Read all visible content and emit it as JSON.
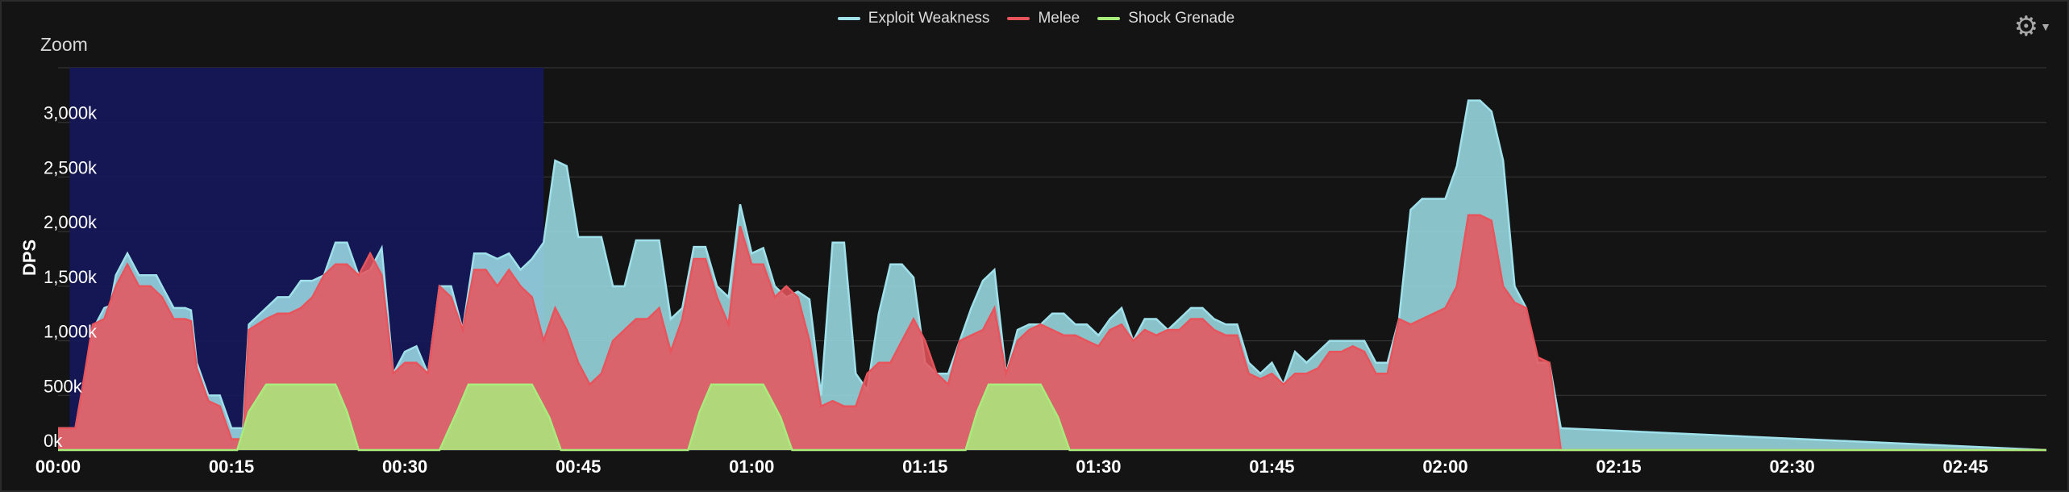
{
  "legend": [
    {
      "name": "Exploit Weakness",
      "color": "#9fe0ea"
    },
    {
      "name": "Melee",
      "color": "#e8545c"
    },
    {
      "name": "Shock Grenade",
      "color": "#a8ec7c"
    }
  ],
  "zoom_label": "Zoom",
  "ylabel": "DPS",
  "settings_icon": "gear-icon",
  "chart_data": {
    "type": "area",
    "ylabel": "DPS",
    "xlabel": "",
    "xlim": [
      0,
      172
    ],
    "ylim": [
      0,
      3500
    ],
    "grid": true,
    "legend_position": "top-center",
    "zoom_selection": [
      1,
      42
    ],
    "y_ticks": [
      0,
      500,
      1000,
      1500,
      2000,
      2500,
      3000
    ],
    "y_tick_labels": [
      "0k",
      "500k",
      "1,000k",
      "1,500k",
      "2,000k",
      "2,500k",
      "3,000k"
    ],
    "x_ticks": [
      0,
      15,
      30,
      45,
      60,
      75,
      90,
      105,
      120,
      135,
      150,
      165
    ],
    "x_tick_labels": [
      "00:00",
      "00:15",
      "00:30",
      "00:45",
      "01:00",
      "01:15",
      "01:30",
      "01:45",
      "02:00",
      "02:15",
      "02:30",
      "02:45"
    ],
    "series": [
      {
        "name": "Exploit Weakness",
        "color": "#9fe0ea",
        "points": [
          [
            0,
            200
          ],
          [
            1.5,
            200
          ],
          [
            2,
            500
          ],
          [
            3,
            1100
          ],
          [
            4,
            1300
          ],
          [
            4.5,
            1320
          ],
          [
            5,
            1600
          ],
          [
            6,
            1800
          ],
          [
            7,
            1600
          ],
          [
            8,
            1600
          ],
          [
            8.5,
            1600
          ],
          [
            9,
            1500
          ],
          [
            10,
            1300
          ],
          [
            11,
            1300
          ],
          [
            11.5,
            1280
          ],
          [
            12,
            800
          ],
          [
            13,
            500
          ],
          [
            14,
            500
          ],
          [
            15,
            200
          ],
          [
            16,
            200
          ],
          [
            16.5,
            1150
          ],
          [
            18,
            1300
          ],
          [
            19,
            1400
          ],
          [
            20,
            1400
          ],
          [
            21,
            1550
          ],
          [
            22,
            1550
          ],
          [
            23,
            1600
          ],
          [
            24,
            1900
          ],
          [
            25,
            1900
          ],
          [
            26,
            1600
          ],
          [
            27,
            1650
          ],
          [
            28,
            1850
          ],
          [
            29,
            700
          ],
          [
            30,
            900
          ],
          [
            31,
            950
          ],
          [
            32,
            700
          ],
          [
            33,
            1500
          ],
          [
            34,
            1500
          ],
          [
            35,
            1100
          ],
          [
            36,
            1800
          ],
          [
            37,
            1800
          ],
          [
            38,
            1750
          ],
          [
            39,
            1800
          ],
          [
            40,
            1650
          ],
          [
            41,
            1750
          ],
          [
            42,
            1900
          ],
          [
            43,
            2650
          ],
          [
            44,
            2600
          ],
          [
            45,
            1950
          ],
          [
            46,
            1950
          ],
          [
            47,
            1950
          ],
          [
            48,
            1500
          ],
          [
            49,
            1500
          ],
          [
            50,
            1920
          ],
          [
            51,
            1920
          ],
          [
            52,
            1920
          ],
          [
            53,
            1200
          ],
          [
            54,
            1300
          ],
          [
            55,
            1860
          ],
          [
            56,
            1860
          ],
          [
            57,
            1500
          ],
          [
            58,
            1400
          ],
          [
            59,
            2250
          ],
          [
            60,
            1800
          ],
          [
            61,
            1850
          ],
          [
            62,
            1500
          ],
          [
            63,
            1400
          ],
          [
            64,
            1450
          ],
          [
            65,
            1380
          ],
          [
            66,
            500
          ],
          [
            67,
            1900
          ],
          [
            68,
            1900
          ],
          [
            69,
            700
          ],
          [
            70,
            550
          ],
          [
            71,
            1250
          ],
          [
            72,
            1700
          ],
          [
            73,
            1700
          ],
          [
            74,
            1580
          ],
          [
            75,
            800
          ],
          [
            76,
            700
          ],
          [
            77,
            700
          ],
          [
            78,
            1000
          ],
          [
            79,
            1300
          ],
          [
            80,
            1550
          ],
          [
            81,
            1650
          ],
          [
            82,
            700
          ],
          [
            83,
            1100
          ],
          [
            84,
            1150
          ],
          [
            85,
            1150
          ],
          [
            86,
            1250
          ],
          [
            87,
            1250
          ],
          [
            88,
            1150
          ],
          [
            89,
            1150
          ],
          [
            90,
            1050
          ],
          [
            91,
            1200
          ],
          [
            92,
            1300
          ],
          [
            93,
            1000
          ],
          [
            94,
            1200
          ],
          [
            95,
            1200
          ],
          [
            96,
            1100
          ],
          [
            97,
            1200
          ],
          [
            98,
            1300
          ],
          [
            99,
            1300
          ],
          [
            100,
            1200
          ],
          [
            101,
            1150
          ],
          [
            102,
            1150
          ],
          [
            103,
            800
          ],
          [
            104,
            700
          ],
          [
            105,
            800
          ],
          [
            106,
            600
          ],
          [
            107,
            900
          ],
          [
            108,
            800
          ],
          [
            109,
            900
          ],
          [
            110,
            1000
          ],
          [
            111,
            1000
          ],
          [
            112,
            1000
          ],
          [
            113,
            1000
          ],
          [
            114,
            800
          ],
          [
            115,
            800
          ],
          [
            116,
            1200
          ],
          [
            117,
            2200
          ],
          [
            118,
            2300
          ],
          [
            119,
            2300
          ],
          [
            120,
            2300
          ],
          [
            121,
            2600
          ],
          [
            122,
            3200
          ],
          [
            123,
            3200
          ],
          [
            124,
            3100
          ],
          [
            125,
            2650
          ],
          [
            126,
            1500
          ],
          [
            127,
            1300
          ],
          [
            128,
            800
          ],
          [
            129,
            800
          ],
          [
            130,
            200
          ],
          [
            172,
            0
          ]
        ]
      },
      {
        "name": "Melee",
        "color": "#e8545c",
        "points": [
          [
            0,
            200
          ],
          [
            1.5,
            200
          ],
          [
            2,
            500
          ],
          [
            3,
            1150
          ],
          [
            4,
            1200
          ],
          [
            5,
            1500
          ],
          [
            6,
            1700
          ],
          [
            7,
            1500
          ],
          [
            8,
            1500
          ],
          [
            9,
            1400
          ],
          [
            10,
            1200
          ],
          [
            11,
            1200
          ],
          [
            11.5,
            1180
          ],
          [
            12,
            750
          ],
          [
            13,
            450
          ],
          [
            14,
            400
          ],
          [
            15,
            100
          ],
          [
            16,
            100
          ],
          [
            16.5,
            1100
          ],
          [
            18,
            1200
          ],
          [
            19,
            1250
          ],
          [
            20,
            1250
          ],
          [
            21,
            1300
          ],
          [
            22,
            1400
          ],
          [
            23,
            1600
          ],
          [
            24,
            1700
          ],
          [
            25,
            1700
          ],
          [
            26,
            1600
          ],
          [
            27,
            1800
          ],
          [
            28,
            1600
          ],
          [
            29,
            700
          ],
          [
            30,
            800
          ],
          [
            31,
            800
          ],
          [
            32,
            700
          ],
          [
            33,
            1500
          ],
          [
            34,
            1400
          ],
          [
            35,
            1100
          ],
          [
            36,
            1650
          ],
          [
            37,
            1650
          ],
          [
            38,
            1500
          ],
          [
            39,
            1650
          ],
          [
            40,
            1500
          ],
          [
            41,
            1400
          ],
          [
            42,
            1000
          ],
          [
            43,
            1300
          ],
          [
            44,
            1100
          ],
          [
            45,
            800
          ],
          [
            46,
            600
          ],
          [
            47,
            700
          ],
          [
            48,
            1000
          ],
          [
            49,
            1100
          ],
          [
            50,
            1200
          ],
          [
            51,
            1200
          ],
          [
            52,
            1300
          ],
          [
            53,
            900
          ],
          [
            54,
            1200
          ],
          [
            55,
            1750
          ],
          [
            56,
            1750
          ],
          [
            57,
            1400
          ],
          [
            58,
            1150
          ],
          [
            59,
            2050
          ],
          [
            60,
            1700
          ],
          [
            61,
            1700
          ],
          [
            62,
            1400
          ],
          [
            63,
            1500
          ],
          [
            64,
            1400
          ],
          [
            65,
            1000
          ],
          [
            66,
            400
          ],
          [
            67,
            450
          ],
          [
            68,
            400
          ],
          [
            69,
            400
          ],
          [
            70,
            700
          ],
          [
            71,
            800
          ],
          [
            72,
            800
          ],
          [
            73,
            1000
          ],
          [
            74,
            1200
          ],
          [
            75,
            1000
          ],
          [
            76,
            700
          ],
          [
            77,
            600
          ],
          [
            78,
            1000
          ],
          [
            79,
            1050
          ],
          [
            80,
            1100
          ],
          [
            81,
            1300
          ],
          [
            82,
            700
          ],
          [
            83,
            1000
          ],
          [
            84,
            1100
          ],
          [
            85,
            1150
          ],
          [
            86,
            1100
          ],
          [
            87,
            1050
          ],
          [
            88,
            1050
          ],
          [
            89,
            1000
          ],
          [
            90,
            950
          ],
          [
            91,
            1100
          ],
          [
            92,
            1150
          ],
          [
            93,
            1000
          ],
          [
            94,
            1100
          ],
          [
            95,
            1050
          ],
          [
            96,
            1100
          ],
          [
            97,
            1100
          ],
          [
            98,
            1200
          ],
          [
            99,
            1200
          ],
          [
            100,
            1100
          ],
          [
            101,
            1050
          ],
          [
            102,
            1050
          ],
          [
            103,
            700
          ],
          [
            104,
            650
          ],
          [
            105,
            700
          ],
          [
            106,
            600
          ],
          [
            107,
            700
          ],
          [
            108,
            700
          ],
          [
            109,
            750
          ],
          [
            110,
            900
          ],
          [
            111,
            900
          ],
          [
            112,
            950
          ],
          [
            113,
            900
          ],
          [
            114,
            700
          ],
          [
            115,
            700
          ],
          [
            116,
            1200
          ],
          [
            117,
            1150
          ],
          [
            118,
            1200
          ],
          [
            119,
            1250
          ],
          [
            120,
            1300
          ],
          [
            121,
            1500
          ],
          [
            122,
            2150
          ],
          [
            123,
            2150
          ],
          [
            124,
            2100
          ],
          [
            125,
            1500
          ],
          [
            126,
            1350
          ],
          [
            127,
            1300
          ],
          [
            128,
            850
          ],
          [
            129,
            800
          ],
          [
            130,
            0
          ],
          [
            172,
            0
          ]
        ]
      },
      {
        "name": "Shock Grenade",
        "color": "#a8ec7c",
        "points": [
          [
            0,
            0
          ],
          [
            14,
            0
          ],
          [
            15.5,
            0
          ],
          [
            16.5,
            350
          ],
          [
            18,
            600
          ],
          [
            24,
            600
          ],
          [
            25,
            350
          ],
          [
            26,
            0
          ],
          [
            33,
            0
          ],
          [
            34.5,
            350
          ],
          [
            35.5,
            600
          ],
          [
            41,
            600
          ],
          [
            42.5,
            300
          ],
          [
            43.5,
            0
          ],
          [
            54.5,
            0
          ],
          [
            55.5,
            350
          ],
          [
            56.5,
            600
          ],
          [
            61,
            600
          ],
          [
            62.5,
            300
          ],
          [
            63.5,
            0
          ],
          [
            78.5,
            0
          ],
          [
            79.5,
            350
          ],
          [
            80.5,
            600
          ],
          [
            85,
            600
          ],
          [
            86.5,
            300
          ],
          [
            87.5,
            0
          ],
          [
            172,
            0
          ]
        ]
      }
    ]
  }
}
